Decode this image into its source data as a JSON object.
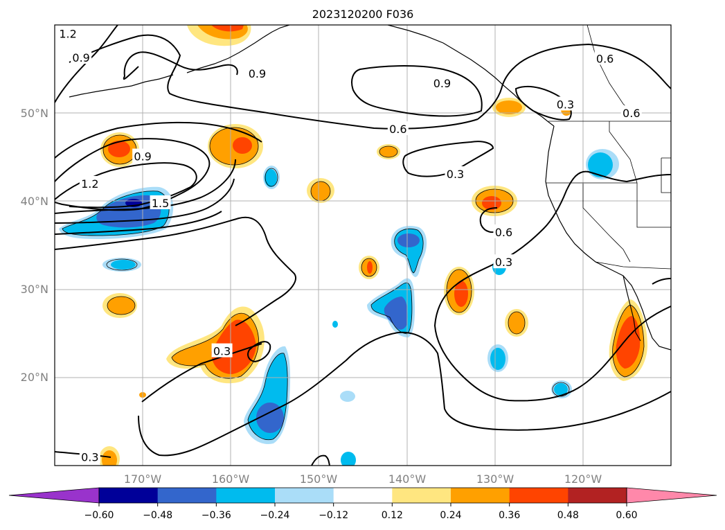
{
  "title": "2023120200 F036",
  "map": {
    "lon_range": [
      -180,
      -110
    ],
    "lat_range": [
      10,
      60
    ],
    "gridlines": true,
    "lon_ticks": [
      {
        "value": -170,
        "label": "170°W"
      },
      {
        "value": -160,
        "label": "160°W"
      },
      {
        "value": -150,
        "label": "150°W"
      },
      {
        "value": -140,
        "label": "140°W"
      },
      {
        "value": -130,
        "label": "130°W"
      },
      {
        "value": -120,
        "label": "120°W"
      }
    ],
    "lat_ticks": [
      {
        "value": 20,
        "label": "20°N"
      },
      {
        "value": 30,
        "label": "30°N"
      },
      {
        "value": 40,
        "label": "40°N"
      },
      {
        "value": 50,
        "label": "50°N"
      }
    ],
    "contour_labels": [
      {
        "text": "1.2",
        "lon": -178.5,
        "lat": 59.0
      },
      {
        "text": "0.9",
        "lon": -177.0,
        "lat": 56.3
      },
      {
        "text": "0.9",
        "lon": -157.0,
        "lat": 54.5
      },
      {
        "text": "0.9",
        "lon": -136.0,
        "lat": 53.4
      },
      {
        "text": "0.6",
        "lon": -117.5,
        "lat": 56.2
      },
      {
        "text": "0.6",
        "lon": -114.5,
        "lat": 50.0
      },
      {
        "text": "0.3",
        "lon": -122.0,
        "lat": 51.0
      },
      {
        "text": "0.6",
        "lon": -141.0,
        "lat": 48.2
      },
      {
        "text": "0.9",
        "lon": -170.0,
        "lat": 45.1
      },
      {
        "text": "1.2",
        "lon": -176.0,
        "lat": 42.0
      },
      {
        "text": "1.5",
        "lon": -168.0,
        "lat": 39.8
      },
      {
        "text": "0.3",
        "lon": -134.5,
        "lat": 43.1
      },
      {
        "text": "0.6",
        "lon": -129.0,
        "lat": 36.5
      },
      {
        "text": "0.3",
        "lon": -129.0,
        "lat": 33.1
      },
      {
        "text": "0.3",
        "lon": -161.0,
        "lat": 23.0
      },
      {
        "text": "0.3",
        "lon": -176.0,
        "lat": 11.0
      }
    ]
  },
  "colorbar": {
    "colors": [
      "#9933cc",
      "#000099",
      "#3366cc",
      "#00bbee",
      "#aaddf8",
      "#ffffff",
      "#ffe680",
      "#ffa000",
      "#ff4400",
      "#b22222",
      "#ff88aa"
    ],
    "labels": [
      "−0.60",
      "−0.48",
      "−0.36",
      "−0.24",
      "−0.12",
      "0.12",
      "0.24",
      "0.36",
      "0.48",
      "0.60"
    ]
  }
}
